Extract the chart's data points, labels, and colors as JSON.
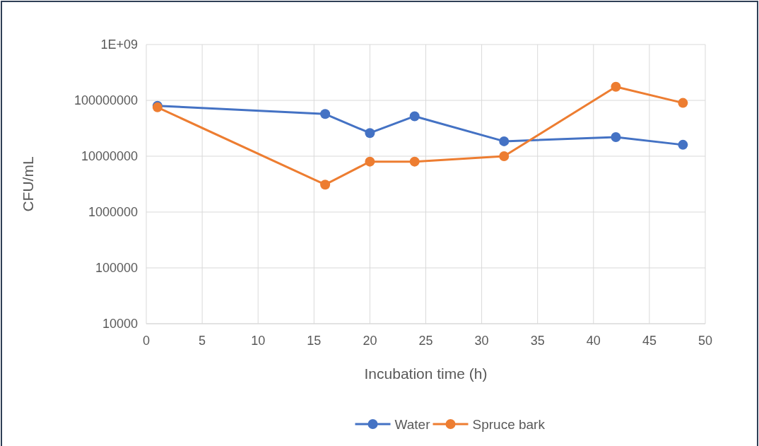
{
  "chart_data": {
    "type": "line",
    "xlabel": "Incubation time (h)",
    "ylabel": "CFU/mL",
    "log": "y",
    "grid": true,
    "legend": "bottom",
    "marker": "circle",
    "line_style": "solid",
    "x": [
      1,
      16,
      20,
      24,
      32,
      42,
      48
    ],
    "xlim": [
      0,
      50
    ],
    "xticks": [
      0,
      5,
      10,
      15,
      20,
      25,
      30,
      35,
      40,
      45,
      50
    ],
    "ylim": [
      10000,
      1000000000
    ],
    "yticks": [
      10000,
      100000,
      1000000,
      10000000,
      100000000,
      {
        "value": 1000000000,
        "label": "1E+09"
      }
    ],
    "series": [
      {
        "name": "Water",
        "color": "#4472c4",
        "values": [
          80000000,
          57000000,
          26000000,
          52000000,
          18500000,
          22000000,
          16000000
        ]
      },
      {
        "name": "Spruce bark",
        "color": "#ed7d31",
        "values": [
          75000000,
          3100000,
          8000000,
          8000000,
          10000000,
          175000000,
          90000000
        ]
      }
    ]
  }
}
